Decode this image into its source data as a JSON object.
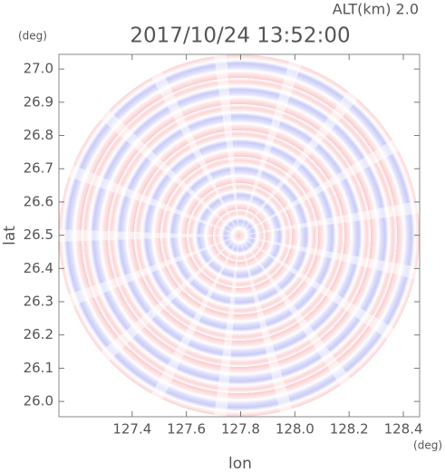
{
  "chart_data": {
    "type": "image",
    "title": "2017/10/24 13:52:00",
    "subtitle": "ALT(km) 2.0",
    "x_label": "lon",
    "y_label": "lat",
    "x_unit": "(deg)",
    "y_unit": "(deg)",
    "xlim": [
      127.13,
      128.46
    ],
    "ylim": [
      25.954,
      27.044
    ],
    "xticks": [
      127.4,
      127.6,
      127.8,
      {
        "value": 128,
        "label": "128.0"
      },
      128.2,
      128.4
    ],
    "yticks": [
      {
        "value": 26,
        "label": "26.0"
      },
      26.1,
      26.2,
      26.3,
      26.4,
      26.5,
      26.6,
      26.7,
      26.8,
      26.9,
      {
        "value": 27,
        "label": "27.0"
      }
    ]
  }
}
